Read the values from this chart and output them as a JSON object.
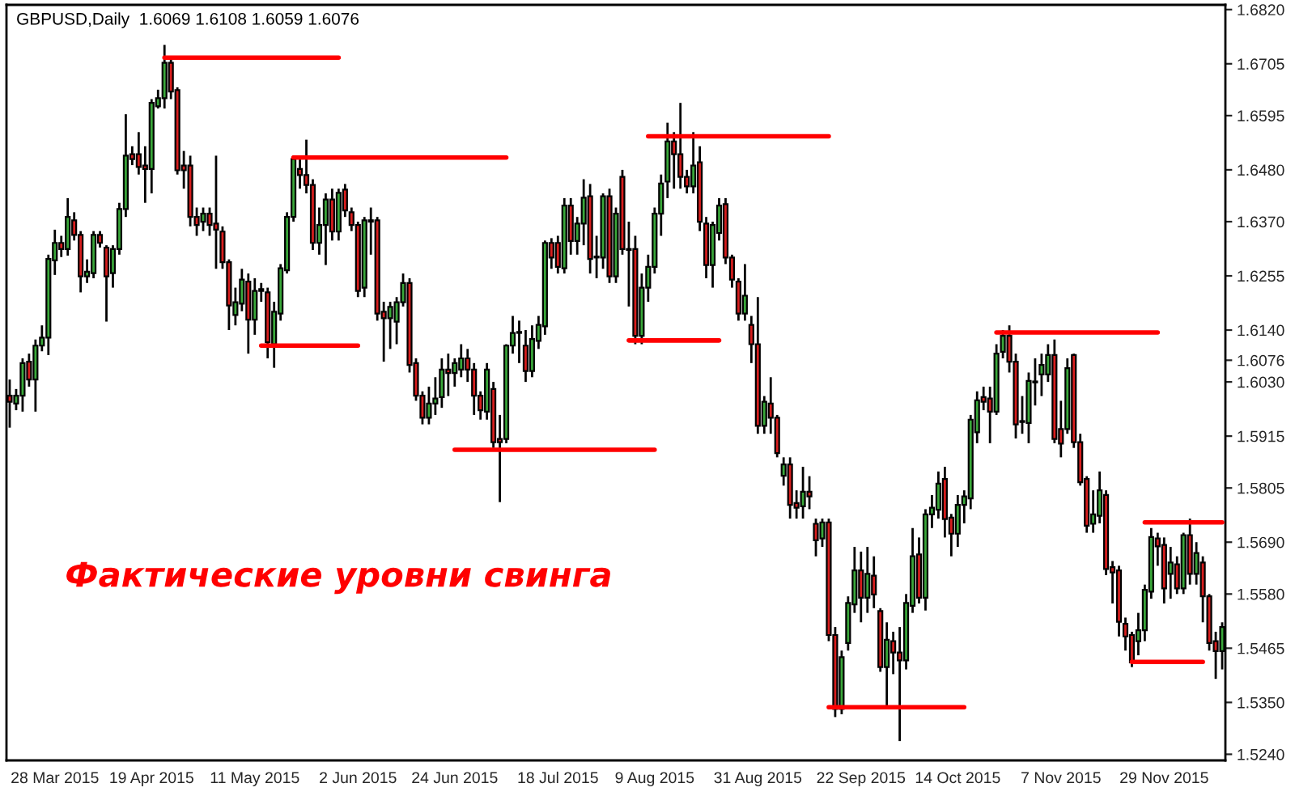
{
  "chart_data": {
    "type": "candlestick",
    "title": "GBPUSD,Daily  1.6069 1.6108 1.6059 1.6076",
    "annotations": [
      "Фактические уровни свинга"
    ],
    "categories": [
      null,
      null,
      null,
      null,
      null,
      null,
      null,
      "28 Mar 2015",
      null,
      null,
      null,
      null,
      null,
      null,
      null,
      null,
      null,
      null,
      null,
      null,
      null,
      null,
      "19 Apr 2015",
      null,
      null,
      null,
      null,
      null,
      null,
      null,
      null,
      null,
      null,
      null,
      null,
      null,
      null,
      null,
      "11 May 2015",
      null,
      null,
      null,
      null,
      null,
      null,
      null,
      null,
      null,
      null,
      null,
      null,
      null,
      null,
      null,
      "2 Jun 2015",
      null,
      null,
      null,
      null,
      null,
      null,
      null,
      null,
      null,
      null,
      null,
      null,
      null,
      null,
      "24 Jun 2015",
      null,
      null,
      null,
      null,
      null,
      null,
      null,
      null,
      null,
      null,
      null,
      null,
      null,
      null,
      null,
      "18 Jul 2015",
      null,
      null,
      null,
      null,
      null,
      null,
      null,
      null,
      null,
      null,
      null,
      null,
      null,
      null,
      "9 Aug 2015",
      null,
      null,
      null,
      null,
      null,
      null,
      null,
      null,
      null,
      null,
      null,
      null,
      null,
      null,
      null,
      "31 Aug 2015",
      null,
      null,
      null,
      null,
      null,
      null,
      null,
      null,
      null,
      null,
      null,
      null,
      null,
      null,
      null,
      "22 Sep 2015",
      null,
      null,
      null,
      null,
      null,
      null,
      null,
      null,
      null,
      null,
      null,
      null,
      null,
      null,
      "14 Oct 2015",
      null,
      null,
      null,
      null,
      null,
      null,
      null,
      null,
      null,
      null,
      null,
      null,
      null,
      null,
      null,
      "7 Nov 2015",
      null,
      null,
      null,
      null,
      null,
      null,
      null,
      null,
      null,
      null,
      null,
      null,
      null,
      null,
      null,
      "29 Nov 2015",
      null,
      null,
      null,
      null,
      null,
      null,
      null,
      null,
      null
    ],
    "ohlc": [
      [
        1.6001,
        1.6035,
        1.5933,
        1.5988
      ],
      [
        1.5984,
        1.6015,
        1.597,
        1.6001
      ],
      [
        1.6001,
        1.608,
        1.5967,
        1.607
      ],
      [
        1.6073,
        1.609,
        1.602,
        1.6035
      ],
      [
        1.6035,
        1.612,
        1.5967,
        1.6107
      ],
      [
        1.6107,
        1.615,
        1.6095,
        1.6124
      ],
      [
        1.6124,
        1.63,
        1.6087,
        1.6291
      ],
      [
        1.6288,
        1.6353,
        1.6257,
        1.6325
      ],
      [
        1.6325,
        1.634,
        1.6295,
        1.6312
      ],
      [
        1.6312,
        1.642,
        1.6298,
        1.638
      ],
      [
        1.6373,
        1.639,
        1.633,
        1.6342
      ],
      [
        1.6342,
        1.635,
        1.622,
        1.6254
      ],
      [
        1.6254,
        1.629,
        1.624,
        1.6264
      ],
      [
        1.6261,
        1.635,
        1.625,
        1.6342
      ],
      [
        1.6342,
        1.635,
        1.6315,
        1.6325
      ],
      [
        1.6315,
        1.632,
        1.6158,
        1.6254
      ],
      [
        1.6261,
        1.632,
        1.623,
        1.6312
      ],
      [
        1.6312,
        1.641,
        1.63,
        1.6397
      ],
      [
        1.6397,
        1.6598,
        1.638,
        1.651
      ],
      [
        1.6513,
        1.653,
        1.649,
        1.6503
      ],
      [
        1.6513,
        1.656,
        1.647,
        1.6486
      ],
      [
        1.6489,
        1.653,
        1.641,
        1.6482
      ],
      [
        1.6482,
        1.663,
        1.643,
        1.6622
      ],
      [
        1.6615,
        1.665,
        1.661,
        1.6632
      ],
      [
        1.6632,
        1.6745,
        1.661,
        1.6707
      ],
      [
        1.6707,
        1.6718,
        1.663,
        1.6646
      ],
      [
        1.6649,
        1.6655,
        1.647,
        1.6479
      ],
      [
        1.6489,
        1.652,
        1.644,
        1.6479
      ],
      [
        1.6489,
        1.651,
        1.636,
        1.638
      ],
      [
        1.638,
        1.64,
        1.634,
        1.6363
      ],
      [
        1.637,
        1.64,
        1.635,
        1.6387
      ],
      [
        1.6387,
        1.64,
        1.634,
        1.6363
      ],
      [
        1.6366,
        1.651,
        1.627,
        1.6353
      ],
      [
        1.6349,
        1.636,
        1.627,
        1.6284
      ],
      [
        1.6284,
        1.629,
        1.614,
        1.6192
      ],
      [
        1.6172,
        1.623,
        1.615,
        1.6199
      ],
      [
        1.6196,
        1.627,
        1.618,
        1.6247
      ],
      [
        1.6243,
        1.626,
        1.609,
        1.6162
      ],
      [
        1.6162,
        1.625,
        1.613,
        1.6223
      ],
      [
        1.6227,
        1.624,
        1.62,
        1.6223
      ],
      [
        1.622,
        1.623,
        1.608,
        1.6114
      ],
      [
        1.611,
        1.62,
        1.606,
        1.6179
      ],
      [
        1.6175,
        1.628,
        1.616,
        1.6271
      ],
      [
        1.6267,
        1.639,
        1.626,
        1.638
      ],
      [
        1.638,
        1.651,
        1.637,
        1.6503
      ],
      [
        1.6482,
        1.651,
        1.644,
        1.6469
      ],
      [
        1.6469,
        1.6544,
        1.643,
        1.6448
      ],
      [
        1.6448,
        1.646,
        1.631,
        1.6325
      ],
      [
        1.6325,
        1.64,
        1.63,
        1.6363
      ],
      [
        1.6363,
        1.643,
        1.6278,
        1.6417
      ],
      [
        1.6417,
        1.644,
        1.633,
        1.6349
      ],
      [
        1.6349,
        1.644,
        1.633,
        1.6431
      ],
      [
        1.6438,
        1.645,
        1.638,
        1.6394
      ],
      [
        1.639,
        1.64,
        1.635,
        1.6363
      ],
      [
        1.6363,
        1.637,
        1.621,
        1.6223
      ],
      [
        1.623,
        1.638,
        1.621,
        1.6373
      ],
      [
        1.6373,
        1.64,
        1.63,
        1.637
      ],
      [
        1.6373,
        1.638,
        1.616,
        1.6175
      ],
      [
        1.6179,
        1.62,
        1.6073,
        1.6165
      ],
      [
        1.6165,
        1.62,
        1.61,
        1.6189
      ],
      [
        1.6158,
        1.621,
        1.611,
        1.6199
      ],
      [
        1.6199,
        1.626,
        1.619,
        1.624
      ],
      [
        1.624,
        1.625,
        1.605,
        1.6066
      ],
      [
        1.607,
        1.608,
        1.599,
        1.6001
      ],
      [
        1.6001,
        1.601,
        1.594,
        1.5954
      ],
      [
        1.5954,
        1.602,
        1.594,
        1.5984
      ],
      [
        1.5984,
        1.604,
        1.596,
        1.5995
      ],
      [
        1.5998,
        1.608,
        1.5975,
        1.6056
      ],
      [
        1.6056,
        1.609,
        1.6,
        1.6049
      ],
      [
        1.6049,
        1.608,
        1.602,
        1.607
      ],
      [
        1.6056,
        1.611,
        1.604,
        1.608
      ],
      [
        1.608,
        1.61,
        1.603,
        1.6056
      ],
      [
        1.6056,
        1.607,
        1.596,
        1.6001
      ],
      [
        1.6001,
        1.601,
        1.595,
        1.597
      ],
      [
        1.5967,
        1.607,
        1.595,
        1.6056
      ],
      [
        1.6015,
        1.603,
        1.589,
        1.5902
      ],
      [
        1.5909,
        1.596,
        1.5775,
        1.5902
      ],
      [
        1.5909,
        1.611,
        1.59,
        1.6107
      ],
      [
        1.6107,
        1.617,
        1.609,
        1.6134
      ],
      [
        1.6134,
        1.616,
        1.607,
        1.6136
      ],
      [
        1.6107,
        1.614,
        1.603,
        1.6053
      ],
      [
        1.6053,
        1.615,
        1.604,
        1.6121
      ],
      [
        1.6117,
        1.617,
        1.61,
        1.6151
      ],
      [
        1.6148,
        1.633,
        1.613,
        1.6325
      ],
      [
        1.6325,
        1.6335,
        1.627,
        1.6294
      ],
      [
        1.6325,
        1.634,
        1.626,
        1.6274
      ],
      [
        1.6271,
        1.642,
        1.626,
        1.6404
      ],
      [
        1.6404,
        1.642,
        1.63,
        1.6329
      ],
      [
        1.6329,
        1.638,
        1.63,
        1.6366
      ],
      [
        1.6366,
        1.646,
        1.632,
        1.6421
      ],
      [
        1.6424,
        1.645,
        1.626,
        1.6291
      ],
      [
        1.6294,
        1.634,
        1.625,
        1.6296
      ],
      [
        1.6294,
        1.643,
        1.627,
        1.6424
      ],
      [
        1.6424,
        1.644,
        1.624,
        1.6254
      ],
      [
        1.6254,
        1.64,
        1.624,
        1.6387
      ],
      [
        1.6465,
        1.648,
        1.63,
        1.6312
      ],
      [
        1.6312,
        1.637,
        1.619,
        1.631
      ],
      [
        1.6312,
        1.634,
        1.611,
        1.6128
      ],
      [
        1.6128,
        1.626,
        1.611,
        1.623
      ],
      [
        1.623,
        1.63,
        1.62,
        1.6274
      ],
      [
        1.6274,
        1.64,
        1.626,
        1.6387
      ],
      [
        1.6387,
        1.647,
        1.634,
        1.6451
      ],
      [
        1.6455,
        1.658,
        1.642,
        1.654
      ],
      [
        1.654,
        1.656,
        1.644,
        1.6513
      ],
      [
        1.6513,
        1.6622,
        1.644,
        1.6465
      ],
      [
        1.6465,
        1.648,
        1.643,
        1.6445
      ],
      [
        1.6445,
        1.656,
        1.643,
        1.6489
      ],
      [
        1.6496,
        1.653,
        1.635,
        1.637
      ],
      [
        1.6366,
        1.638,
        1.625,
        1.6278
      ],
      [
        1.6278,
        1.637,
        1.623,
        1.6363
      ],
      [
        1.6346,
        1.642,
        1.633,
        1.6404
      ],
      [
        1.6407,
        1.642,
        1.628,
        1.6294
      ],
      [
        1.6294,
        1.63,
        1.623,
        1.6247
      ],
      [
        1.6243,
        1.625,
        1.616,
        1.6175
      ],
      [
        1.6175,
        1.628,
        1.616,
        1.6213
      ],
      [
        1.6151,
        1.617,
        1.607,
        1.611
      ],
      [
        1.611,
        1.621,
        1.592,
        1.5937
      ],
      [
        1.5937,
        1.6,
        1.592,
        1.5988
      ],
      [
        1.5984,
        1.604,
        1.592,
        1.5954
      ],
      [
        1.5954,
        1.596,
        1.587,
        1.5879
      ],
      [
        1.5831,
        1.587,
        1.581,
        1.5855
      ],
      [
        1.5855,
        1.587,
        1.574,
        1.5769
      ],
      [
        1.5773,
        1.58,
        1.574,
        1.5763
      ],
      [
        1.5766,
        1.585,
        1.574,
        1.5797
      ],
      [
        1.5797,
        1.583,
        1.576,
        1.5787
      ],
      [
        1.5729,
        1.574,
        1.566,
        1.5694
      ],
      [
        1.5698,
        1.574,
        1.568,
        1.5732
      ],
      [
        1.5732,
        1.574,
        1.548,
        1.5493
      ],
      [
        1.5493,
        1.551,
        1.5319,
        1.5336
      ],
      [
        1.5336,
        1.546,
        1.5325,
        1.5446
      ],
      [
        1.5476,
        1.5575,
        1.546,
        1.5561
      ],
      [
        1.5558,
        1.568,
        1.554,
        1.563
      ],
      [
        1.563,
        1.567,
        1.552,
        1.5572
      ],
      [
        1.5572,
        1.568,
        1.554,
        1.5623
      ],
      [
        1.5619,
        1.566,
        1.555,
        1.5579
      ],
      [
        1.5544,
        1.555,
        1.5415,
        1.5425
      ],
      [
        1.5425,
        1.552,
        1.5336,
        1.5483
      ],
      [
        1.548,
        1.55,
        1.541,
        1.5456
      ],
      [
        1.5456,
        1.551,
        1.5268,
        1.5439
      ],
      [
        1.5439,
        1.558,
        1.542,
        1.5561
      ],
      [
        1.5555,
        1.572,
        1.554,
        1.566
      ],
      [
        1.5664,
        1.57,
        1.556,
        1.5572
      ],
      [
        1.5572,
        1.576,
        1.5545,
        1.5749
      ],
      [
        1.5749,
        1.579,
        1.572,
        1.5763
      ],
      [
        1.5759,
        1.584,
        1.574,
        1.5814
      ],
      [
        1.5824,
        1.585,
        1.57,
        1.5739
      ],
      [
        1.5742,
        1.575,
        1.566,
        1.5708
      ],
      [
        1.5708,
        1.579,
        1.568,
        1.5769
      ],
      [
        1.5769,
        1.58,
        1.573,
        1.5787
      ],
      [
        1.5783,
        1.596,
        1.576,
        1.595
      ],
      [
        1.5923,
        1.601,
        1.59,
        1.5991
      ],
      [
        1.5998,
        1.602,
        1.597,
        1.5988
      ],
      [
        1.5995,
        1.602,
        1.59,
        1.5967
      ],
      [
        1.5967,
        1.611,
        1.596,
        1.609
      ],
      [
        1.6094,
        1.614,
        1.608,
        1.6128
      ],
      [
        1.6128,
        1.615,
        1.605,
        1.6073
      ],
      [
        1.6073,
        1.609,
        1.591,
        1.594
      ],
      [
        1.5947,
        1.6,
        1.592,
        1.5945
      ],
      [
        1.5943,
        1.605,
        1.59,
        1.6032
      ],
      [
        1.6029,
        1.608,
        1.598,
        1.6031
      ],
      [
        1.6046,
        1.609,
        1.6,
        1.6066
      ],
      [
        1.6046,
        1.611,
        1.603,
        1.6087
      ],
      [
        1.6087,
        1.612,
        1.59,
        1.5909
      ],
      [
        1.593,
        1.599,
        1.587,
        1.5899
      ],
      [
        1.593,
        1.608,
        1.592,
        1.6059
      ],
      [
        1.6087,
        1.609,
        1.589,
        1.5902
      ],
      [
        1.5902,
        1.592,
        1.581,
        1.5817
      ],
      [
        1.5824,
        1.583,
        1.571,
        1.5725
      ],
      [
        1.5729,
        1.58,
        1.571,
        1.5749
      ],
      [
        1.5746,
        1.584,
        1.573,
        1.58
      ],
      [
        1.579,
        1.58,
        1.562,
        1.5633
      ],
      [
        1.5637,
        1.565,
        1.556,
        1.5626
      ],
      [
        1.563,
        1.564,
        1.549,
        1.5521
      ],
      [
        1.5517,
        1.553,
        1.546,
        1.549
      ],
      [
        1.5493,
        1.55,
        1.5425,
        1.5435
      ],
      [
        1.548,
        1.554,
        1.545,
        1.5503
      ],
      [
        1.5503,
        1.56,
        1.548,
        1.5589
      ],
      [
        1.5585,
        1.572,
        1.557,
        1.5701
      ],
      [
        1.5698,
        1.571,
        1.564,
        1.5681
      ],
      [
        1.5684,
        1.57,
        1.556,
        1.5592
      ],
      [
        1.5623,
        1.568,
        1.557,
        1.5647
      ],
      [
        1.5643,
        1.566,
        1.558,
        1.5592
      ],
      [
        1.5592,
        1.571,
        1.558,
        1.5705
      ],
      [
        1.5705,
        1.574,
        1.56,
        1.5623
      ],
      [
        1.5623,
        1.569,
        1.56,
        1.5667
      ],
      [
        1.5647,
        1.566,
        1.552,
        1.5575
      ],
      [
        1.5575,
        1.558,
        1.546,
        1.5476
      ],
      [
        1.548,
        1.55,
        1.54,
        1.5459
      ],
      [
        1.5459,
        1.552,
        1.542,
        1.551
      ]
    ],
    "series": [
      {
        "type": "line",
        "color": "#ff0000",
        "values": [
          null,
          null,
          null,
          null,
          null,
          null,
          null,
          null,
          null,
          null,
          null,
          null,
          null,
          null,
          null,
          null,
          null,
          null,
          null,
          null,
          null,
          null,
          null,
          null,
          1.6718,
          1.6718,
          1.6718,
          1.6718,
          1.6718,
          1.6718,
          1.6718,
          1.6718,
          1.6718,
          1.6718,
          1.6718,
          1.6718,
          1.6718,
          1.6718,
          1.6718,
          1.6718,
          1.6718,
          1.6718,
          1.6718,
          1.6718,
          1.6718,
          1.6718,
          1.6718,
          1.6718,
          1.6718,
          1.6718,
          1.6718,
          1.6718,
          null,
          null,
          null,
          null,
          null,
          null,
          null,
          null,
          null,
          null,
          null,
          null,
          null,
          null,
          null,
          null,
          null,
          1.5886,
          1.5886,
          1.5886,
          1.5886,
          1.5886,
          1.5886,
          1.5886,
          1.5886,
          1.5886,
          1.5886,
          1.5886,
          1.5886,
          1.5886,
          1.5886,
          1.5886,
          1.5886,
          1.5886,
          1.5886,
          1.5886,
          1.5886,
          1.5886,
          1.5886,
          1.5886,
          1.5886,
          1.5886,
          1.5886,
          1.5886,
          1.5886,
          1.5886,
          1.5886,
          1.5886,
          1.5886,
          null,
          null,
          null,
          null,
          null,
          null,
          null,
          null,
          null,
          null,
          null,
          null,
          null,
          null,
          null,
          null,
          null,
          null,
          null,
          null,
          null,
          null,
          null,
          null,
          null,
          null,
          1.534,
          1.534,
          1.534,
          1.534,
          1.534,
          1.534,
          1.534,
          1.534,
          1.534,
          1.534,
          1.534,
          1.534,
          1.534,
          1.534,
          1.534,
          1.534,
          1.534,
          1.534,
          1.534,
          1.534,
          1.534,
          1.534,
          null,
          null,
          null,
          null,
          null,
          null,
          null,
          null,
          null,
          null,
          null,
          null,
          null,
          null,
          null,
          null,
          null,
          null,
          null,
          null,
          null,
          null,
          null,
          null,
          null,
          null,
          null,
          1.5732,
          1.5732,
          1.5732,
          1.5732,
          1.5732,
          1.5732,
          1.5732,
          1.5732,
          1.5732,
          1.5732,
          1.5732,
          1.5732,
          1.5732
        ]
      },
      {
        "type": "line",
        "color": "#ff0000",
        "values": [
          null,
          null,
          null,
          null,
          null,
          null,
          null,
          null,
          null,
          null,
          null,
          null,
          null,
          null,
          null,
          null,
          null,
          null,
          null,
          null,
          null,
          null,
          null,
          null,
          null,
          null,
          null,
          null,
          null,
          null,
          null,
          null,
          null,
          null,
          null,
          null,
          null,
          null,
          null,
          1.6107,
          1.6107,
          1.6107,
          1.6107,
          1.6107,
          1.6107,
          1.6107,
          1.6107,
          1.6107,
          1.6107,
          1.6107,
          1.6107,
          1.6107,
          1.6107,
          1.6107,
          1.6107,
          null,
          null,
          null,
          null,
          null,
          null,
          null,
          null,
          null,
          null,
          null,
          null,
          null,
          null,
          null,
          null,
          null,
          null,
          null,
          null,
          null,
          null,
          null,
          null,
          null,
          null,
          null,
          null,
          null,
          null,
          null,
          null,
          null,
          null,
          null,
          null,
          null,
          null,
          null,
          null,
          null,
          1.6118,
          1.6118,
          1.6118,
          1.6118,
          1.6118,
          1.6118,
          1.6118,
          1.6118,
          1.6118,
          1.6118,
          1.6118,
          1.6118,
          1.6118,
          1.6118,
          1.6118,
          null,
          null,
          null,
          null,
          null,
          null,
          null,
          null,
          null,
          null,
          null,
          null,
          null,
          null,
          null,
          null,
          null,
          null,
          null,
          null,
          null,
          null,
          null,
          null,
          null,
          null,
          null,
          null,
          null,
          null,
          null,
          null,
          null,
          null,
          null,
          null,
          null,
          null,
          null,
          null,
          null,
          null,
          1.6135,
          1.6135,
          1.6135,
          1.6135,
          1.6135,
          1.6135,
          1.6135,
          1.6135,
          1.6135,
          1.6135,
          1.6135,
          1.6135,
          1.6135,
          1.6135,
          1.6135,
          1.6135,
          1.6135,
          1.6135,
          1.6135,
          1.6135,
          1.6135,
          1.6135,
          1.6135,
          1.6135,
          1.6135,
          1.6135,
          null,
          null,
          null,
          null,
          null,
          null,
          null,
          null,
          null,
          null
        ]
      },
      {
        "type": "line",
        "color": "#ff0000",
        "values": [
          null,
          null,
          null,
          null,
          null,
          null,
          null,
          null,
          null,
          null,
          null,
          null,
          null,
          null,
          null,
          null,
          null,
          null,
          null,
          null,
          null,
          null,
          null,
          null,
          null,
          null,
          null,
          null,
          null,
          null,
          null,
          null,
          null,
          null,
          null,
          null,
          null,
          null,
          null,
          null,
          null,
          null,
          null,
          null,
          1.6506,
          1.6506,
          1.6506,
          1.6506,
          1.6506,
          1.6506,
          1.6506,
          1.6506,
          1.6506,
          1.6506,
          1.6506,
          1.6506,
          1.6506,
          1.6506,
          1.6506,
          1.6506,
          1.6506,
          1.6506,
          1.6506,
          1.6506,
          1.6506,
          1.6506,
          1.6506,
          1.6506,
          1.6506,
          1.6506,
          1.6506,
          1.6506,
          1.6506,
          1.6506,
          1.6506,
          1.6506,
          1.6506,
          1.6506,
          null,
          null,
          null,
          null,
          null,
          null,
          null,
          null,
          null,
          null,
          null,
          null,
          null,
          null,
          null,
          null,
          null,
          null,
          null,
          null,
          null,
          1.6551,
          1.6551,
          1.6551,
          1.6551,
          1.6551,
          1.6551,
          1.6551,
          1.6551,
          1.6551,
          1.6551,
          1.6551,
          1.6551,
          1.6551,
          1.6551,
          1.6551,
          1.6551,
          1.6551,
          1.6551,
          1.6551,
          1.6551,
          1.6551,
          1.6551,
          1.6551,
          1.6551,
          1.6551,
          1.6551,
          1.6551,
          1.6551,
          1.6551,
          null,
          null,
          null,
          null,
          null,
          null,
          null,
          null,
          null,
          null,
          null,
          null,
          null,
          null,
          null,
          null,
          null,
          null,
          null,
          null,
          null,
          null,
          null,
          null,
          null,
          null,
          null,
          null,
          null,
          null,
          null,
          null,
          null,
          null,
          null,
          null,
          null,
          null,
          null,
          null,
          null,
          null,
          null,
          null,
          null,
          null,
          1.5436,
          1.5436,
          1.5436,
          1.5436,
          1.5436,
          1.5436,
          1.5436,
          1.5436,
          1.5436,
          1.5436,
          1.5436,
          1.5436,
          null,
          null,
          null
        ]
      }
    ],
    "ylim": [
      1.5227,
      1.683
    ],
    "yticks": [
      {
        "value": 1.682,
        "label": "1.6820"
      },
      {
        "value": 1.6705,
        "label": "1.6705"
      },
      {
        "value": 1.6595,
        "label": "1.6595"
      },
      {
        "value": 1.648,
        "label": "1.6480"
      },
      {
        "value": 1.637,
        "label": "1.6370"
      },
      {
        "value": 1.6255,
        "label": "1.6255"
      },
      {
        "value": 1.614,
        "label": "1.6140"
      },
      {
        "value": 1.6076,
        "label": "1.6076"
      },
      {
        "value": 1.603,
        "label": "1.6030"
      },
      {
        "value": 1.5915,
        "label": "1.5915"
      },
      {
        "value": 1.5805,
        "label": "1.5805"
      },
      {
        "value": 1.569,
        "label": "1.5690"
      },
      {
        "value": 1.558,
        "label": "1.5580"
      },
      {
        "value": 1.5465,
        "label": "1.5465"
      },
      {
        "value": 1.535,
        "label": "1.5350"
      },
      {
        "value": 1.524,
        "label": "1.5240"
      }
    ]
  }
}
